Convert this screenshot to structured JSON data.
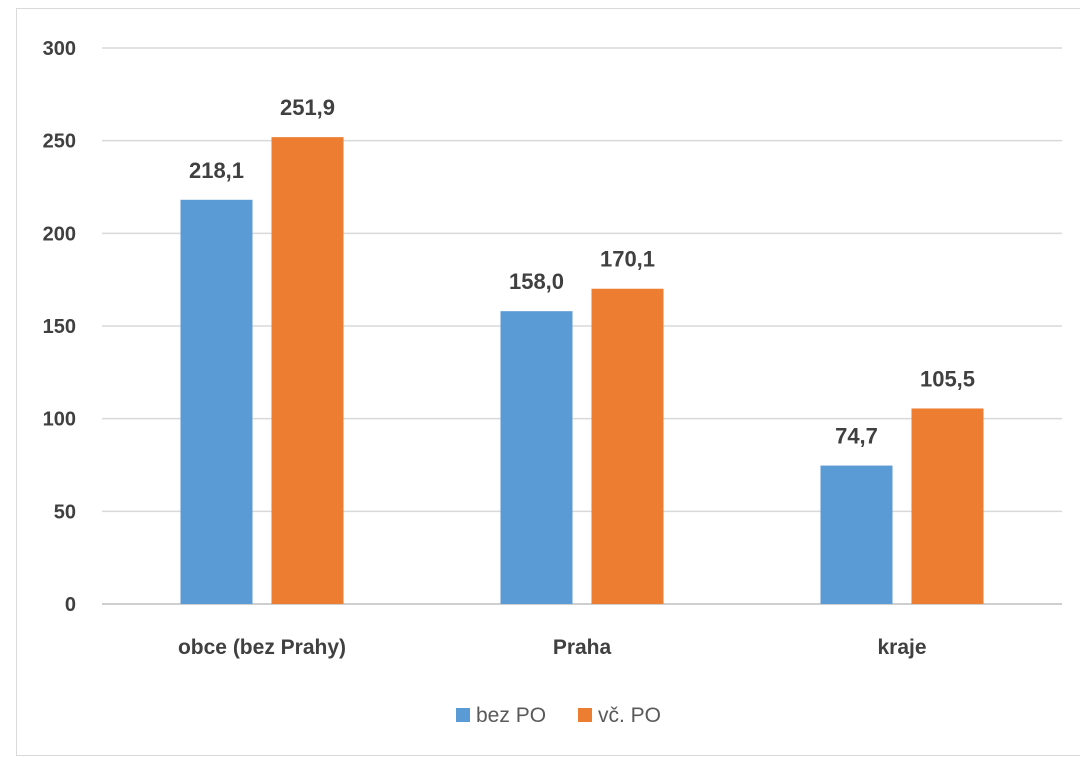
{
  "chart_data": {
    "type": "bar",
    "categories": [
      "obce (bez Prahy)",
      "Praha",
      "kraje"
    ],
    "series": [
      {
        "name": "bez PO",
        "values": [
          218.1,
          158.0,
          74.7
        ],
        "labels": [
          "218,1",
          "158,0",
          "74,7"
        ],
        "color": "#5b9bd5"
      },
      {
        "name": "vč. PO",
        "values": [
          251.9,
          170.1,
          105.5
        ],
        "labels": [
          "251,9",
          "170,1",
          "105,5"
        ],
        "color": "#ed7d31"
      }
    ],
    "yticks": [
      0,
      50,
      100,
      150,
      200,
      250,
      300
    ],
    "ylim": [
      0,
      300
    ],
    "grid": true,
    "legend": "bottom-center",
    "gridline_color": "#d9d9d9",
    "axis_color": "#bfbfbf"
  }
}
